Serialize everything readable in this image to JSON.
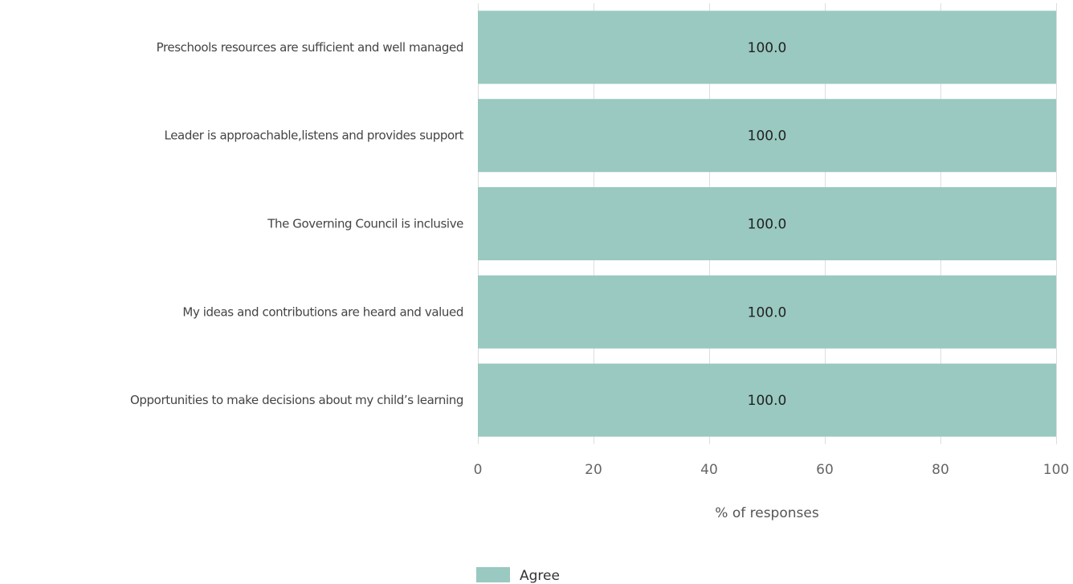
{
  "chart_data": {
    "type": "bar",
    "orientation": "horizontal",
    "categories": [
      "Preschools resources are sufficient and well managed",
      "Leader is approachable,listens and provides support",
      "The Governing Council is inclusive",
      "My ideas and contributions are heard and valued",
      "Opportunities to make decisions about my child’s learning"
    ],
    "series": [
      {
        "name": "Agree",
        "values": [
          100.0,
          100.0,
          100.0,
          100.0,
          100.0
        ],
        "color": "#99c9c1"
      }
    ],
    "data_labels": [
      "100.0",
      "100.0",
      "100.0",
      "100.0",
      "100.0"
    ],
    "xlabel": "% of responses",
    "xlim": [
      0,
      100
    ],
    "xticks": [
      0,
      20,
      40,
      60,
      80,
      100
    ],
    "xtick_labels": [
      "0",
      "20",
      "40",
      "60",
      "80",
      "100"
    ],
    "grid": true,
    "grid_color": "#dddddd",
    "legend": {
      "position": "bottom-center",
      "items": [
        {
          "label": "Agree",
          "color": "#99c9c1"
        }
      ]
    }
  }
}
